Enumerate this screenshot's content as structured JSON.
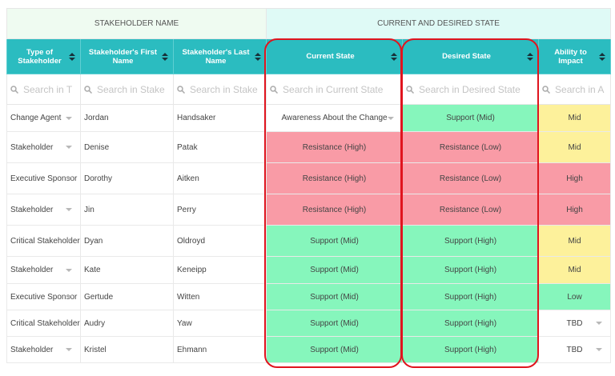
{
  "table": {
    "groups": [
      "STAKEHOLDER NAME",
      "CURRENT AND DESIRED STATE"
    ],
    "columns": [
      "Type of Stakeholder",
      "Stakeholder's First Name",
      "Stakeholder's Last Name",
      "Current State",
      "Desired State",
      "Ability to Impact"
    ],
    "search": [
      "Search in T",
      "Search in Stake",
      "Search in Stake",
      "Search in Current State",
      "Search in Desired State",
      "Search in A"
    ],
    "rows": [
      [
        "Change Agent",
        "Jordan",
        "Handsaker",
        "Awareness About the Change",
        "Support (Mid)",
        "Mid"
      ],
      [
        "Stakeholder",
        "Denise",
        "Patak",
        "Resistance (High)",
        "Resistance (Low)",
        "Mid"
      ],
      [
        "Executive Sponsor",
        "Dorothy",
        "Aitken",
        "Resistance (High)",
        "Resistance (Low)",
        "High"
      ],
      [
        "Stakeholder",
        "Jin",
        "Perry",
        "Resistance (High)",
        "Resistance (Low)",
        "High"
      ],
      [
        "Critical Stakeholder",
        "Dyan",
        "Oldroyd",
        "Support (Mid)",
        "Support (High)",
        "Mid"
      ],
      [
        "Stakeholder",
        "Kate",
        "Keneipp",
        "Support (Mid)",
        "Support (High)",
        "Mid"
      ],
      [
        "Executive Sponsor",
        "Gertude",
        "Witten",
        "Support (Mid)",
        "Support (High)",
        "Low"
      ],
      [
        "Critical Stakeholder",
        "Audry",
        "Yaw",
        "Support (Mid)",
        "Support (High)",
        "TBD"
      ],
      [
        "Stakeholder",
        "Kristel",
        "Ehmann",
        "Support (Mid)",
        "Support (High)",
        "TBD"
      ]
    ]
  }
}
